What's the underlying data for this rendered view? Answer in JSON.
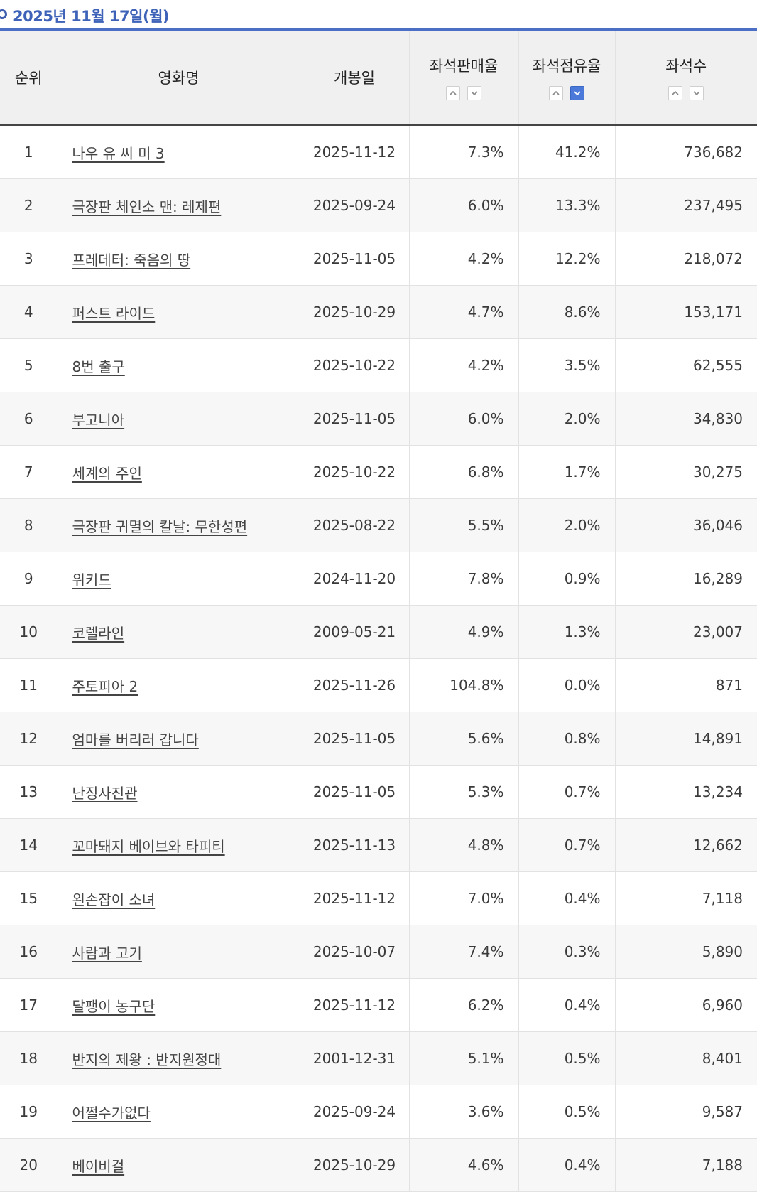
{
  "header": {
    "date": "2025년 11월 17일(월)"
  },
  "table": {
    "columns": {
      "rank": "순위",
      "title": "영화명",
      "release": "개봉일",
      "sales_rate": "좌석판매율",
      "share_rate": "좌석점유율",
      "seats": "좌석수"
    },
    "rows": [
      {
        "rank": "1",
        "title": "나우 유 씨 미 3",
        "release": "2025-11-12",
        "sales_rate": "7.3%",
        "share_rate": "41.2%",
        "seats": "736,682"
      },
      {
        "rank": "2",
        "title": "극장판 체인소 맨: 레제편",
        "release": "2025-09-24",
        "sales_rate": "6.0%",
        "share_rate": "13.3%",
        "seats": "237,495"
      },
      {
        "rank": "3",
        "title": "프레데터: 죽음의 땅",
        "release": "2025-11-05",
        "sales_rate": "4.2%",
        "share_rate": "12.2%",
        "seats": "218,072"
      },
      {
        "rank": "4",
        "title": "퍼스트 라이드",
        "release": "2025-10-29",
        "sales_rate": "4.7%",
        "share_rate": "8.6%",
        "seats": "153,171"
      },
      {
        "rank": "5",
        "title": "8번 출구",
        "release": "2025-10-22",
        "sales_rate": "4.2%",
        "share_rate": "3.5%",
        "seats": "62,555"
      },
      {
        "rank": "6",
        "title": "부고니아",
        "release": "2025-11-05",
        "sales_rate": "6.0%",
        "share_rate": "2.0%",
        "seats": "34,830"
      },
      {
        "rank": "7",
        "title": "세계의 주인",
        "release": "2025-10-22",
        "sales_rate": "6.8%",
        "share_rate": "1.7%",
        "seats": "30,275"
      },
      {
        "rank": "8",
        "title": "극장판 귀멸의 칼날: 무한성편",
        "release": "2025-08-22",
        "sales_rate": "5.5%",
        "share_rate": "2.0%",
        "seats": "36,046"
      },
      {
        "rank": "9",
        "title": "위키드",
        "release": "2024-11-20",
        "sales_rate": "7.8%",
        "share_rate": "0.9%",
        "seats": "16,289"
      },
      {
        "rank": "10",
        "title": "코렐라인",
        "release": "2009-05-21",
        "sales_rate": "4.9%",
        "share_rate": "1.3%",
        "seats": "23,007"
      },
      {
        "rank": "11",
        "title": "주토피아 2",
        "release": "2025-11-26",
        "sales_rate": "104.8%",
        "share_rate": "0.0%",
        "seats": "871"
      },
      {
        "rank": "12",
        "title": "엄마를 버리러 갑니다",
        "release": "2025-11-05",
        "sales_rate": "5.6%",
        "share_rate": "0.8%",
        "seats": "14,891"
      },
      {
        "rank": "13",
        "title": "난징사진관",
        "release": "2025-11-05",
        "sales_rate": "5.3%",
        "share_rate": "0.7%",
        "seats": "13,234"
      },
      {
        "rank": "14",
        "title": "꼬마돼지 베이브와 타피티",
        "release": "2025-11-13",
        "sales_rate": "4.8%",
        "share_rate": "0.7%",
        "seats": "12,662"
      },
      {
        "rank": "15",
        "title": "왼손잡이 소녀",
        "release": "2025-11-12",
        "sales_rate": "7.0%",
        "share_rate": "0.4%",
        "seats": "7,118"
      },
      {
        "rank": "16",
        "title": "사람과 고기",
        "release": "2025-10-07",
        "sales_rate": "7.4%",
        "share_rate": "0.3%",
        "seats": "5,890"
      },
      {
        "rank": "17",
        "title": "달팽이 농구단",
        "release": "2025-11-12",
        "sales_rate": "6.2%",
        "share_rate": "0.4%",
        "seats": "6,960"
      },
      {
        "rank": "18",
        "title": "반지의 제왕 : 반지원정대",
        "release": "2001-12-31",
        "sales_rate": "5.1%",
        "share_rate": "0.5%",
        "seats": "8,401"
      },
      {
        "rank": "19",
        "title": "어쩔수가없다",
        "release": "2025-09-24",
        "sales_rate": "3.6%",
        "share_rate": "0.5%",
        "seats": "9,587"
      },
      {
        "rank": "20",
        "title": "베이비걸",
        "release": "2025-10-29",
        "sales_rate": "4.6%",
        "share_rate": "0.4%",
        "seats": "7,188"
      }
    ]
  },
  "sort": {
    "active_column": "share_rate",
    "active_direction": "desc",
    "up_icon": "chevron-up-icon",
    "down_icon": "chevron-down-icon"
  },
  "colors": {
    "accent": "#3d62b8",
    "active_sort": "#4a79d9"
  }
}
